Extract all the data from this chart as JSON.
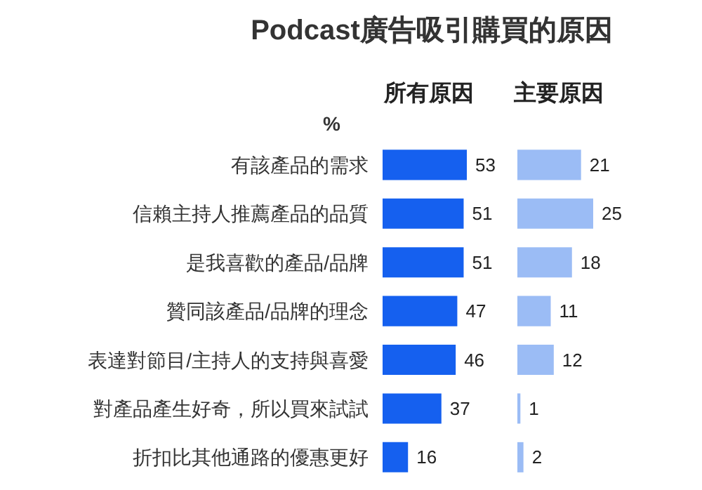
{
  "chart_data": [
    {
      "type": "bar",
      "orientation": "horizontal",
      "title": "Podcast廣告吸引購買的原因",
      "subtitle": "所有原因",
      "ylabel": "%",
      "categories": [
        "有該產品的需求",
        "信賴主持人推薦產品的品質",
        "是我喜歡的產品/品牌",
        "贊同該產品/品牌的理念",
        "表達對節目/主持人的支持與喜愛",
        "對產品產生好奇，所以買來試試",
        "折扣比其他通路的優惠更好"
      ],
      "values": [
        53,
        51,
        51,
        47,
        46,
        37,
        16
      ],
      "color": "#1560ef",
      "data_labels": true
    },
    {
      "type": "bar",
      "orientation": "horizontal",
      "subtitle": "主要原因",
      "categories": [
        null,
        null,
        null,
        null,
        null,
        null,
        null
      ],
      "values": [
        21,
        25,
        18,
        11,
        12,
        1,
        2
      ],
      "color": "#9bbcf5",
      "data_labels": true
    }
  ]
}
